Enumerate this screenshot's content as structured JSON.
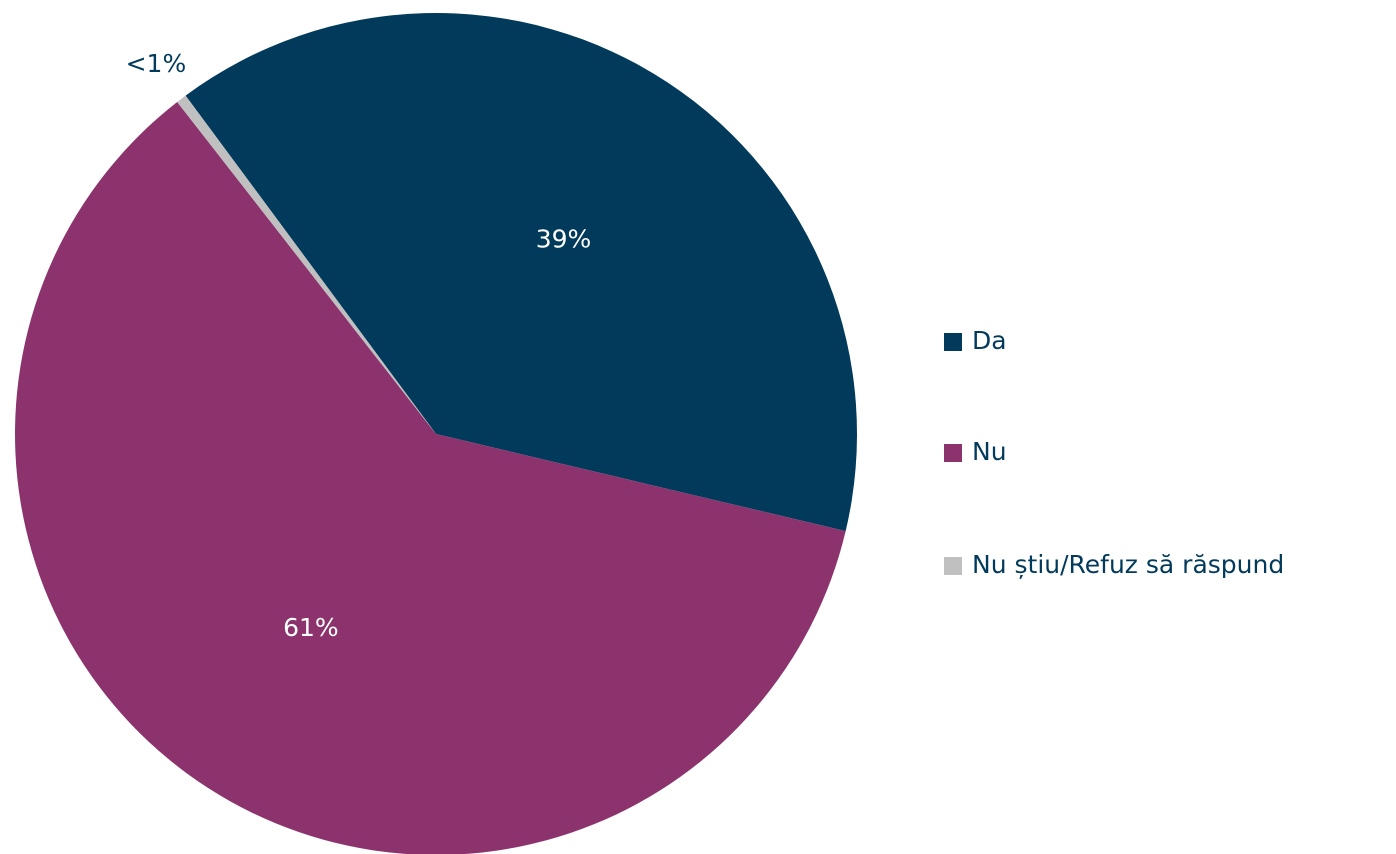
{
  "chart_data": {
    "type": "pie",
    "categories": [
      "Da",
      "Nu",
      "Nu știu/Refuz să răspund"
    ],
    "values": [
      39,
      61,
      0.4
    ],
    "value_labels": [
      "39%",
      "61%",
      "<1%"
    ],
    "colors": [
      "#023a5c",
      "#8c336d",
      "#c0c0c0"
    ],
    "legend": "right"
  }
}
